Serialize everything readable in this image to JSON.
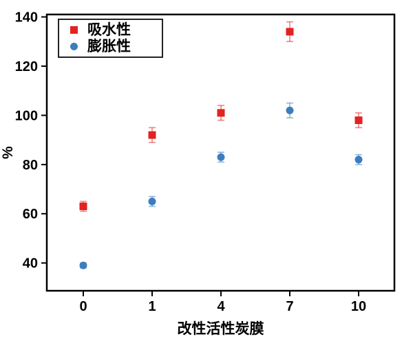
{
  "figure": {
    "background": "#ffffff",
    "axis_color": "#000000"
  },
  "chart_data": {
    "type": "scatter",
    "title": "",
    "xlabel": "改性活性炭膜",
    "ylabel": "%",
    "categories": [
      "0",
      "1",
      "4",
      "7",
      "10"
    ],
    "series": [
      {
        "name": "吸水性",
        "marker": "square",
        "color": "#e32222",
        "values": [
          63,
          92,
          101,
          134,
          98
        ],
        "errors": [
          2,
          3,
          3,
          4,
          3
        ]
      },
      {
        "name": "膨胀性",
        "marker": "circle",
        "color": "#3d7dbf",
        "values": [
          39,
          65,
          83,
          102,
          82
        ],
        "errors": [
          1,
          2,
          2,
          3,
          2
        ]
      }
    ],
    "ylim": [
      28.7,
      141
    ],
    "yticks": [
      40,
      60,
      80,
      100,
      120,
      140
    ],
    "grid": false,
    "legend_position": "top-left"
  }
}
